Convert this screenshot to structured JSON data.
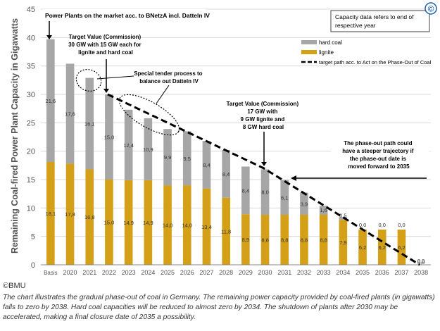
{
  "chart_data": {
    "type": "bar",
    "stacked": true,
    "ylabel": "Remaining Coal-fired Power Plant Capacity in Gigawatts",
    "ylim": [
      0,
      45
    ],
    "yticks": [
      "0",
      "5",
      "10",
      "15",
      "20",
      "25",
      "30",
      "35",
      "40",
      "45"
    ],
    "categories": [
      "Basis",
      "2020",
      "2021",
      "2022",
      "2023",
      "2024",
      "2025",
      "2026",
      "2027",
      "2028",
      "2029",
      "2030",
      "2031",
      "2032",
      "2033",
      "2034",
      "2035",
      "2036",
      "2037",
      "2038"
    ],
    "series": [
      {
        "name": "lignite",
        "color": "#D4A017",
        "values": [
          18.1,
          17.8,
          16.8,
          15.0,
          14.9,
          14.9,
          14.0,
          14.0,
          13.4,
          11.8,
          8.9,
          8.8,
          8.8,
          8.8,
          8.8,
          7.9,
          6.2,
          6.2,
          6.2,
          0
        ],
        "labels": [
          "18,1",
          "17,8",
          "16,8",
          "15,0",
          "14,9",
          "14,9",
          "14,0",
          "14,0",
          "13,4",
          "11,8",
          "8,9",
          "8,8",
          "8,8",
          "8,8",
          "8,8",
          "7,9",
          "6,2",
          "6,2",
          "6,2",
          "0,0"
        ]
      },
      {
        "name": "hard coal",
        "color": "#A6A6A6",
        "values": [
          21.6,
          17.6,
          16.1,
          15.0,
          12.4,
          10.9,
          9.9,
          9.5,
          8.4,
          8.4,
          8.4,
          8.0,
          6.1,
          3.9,
          1.6,
          0.5,
          0,
          0,
          0,
          0
        ],
        "labels": [
          "21,6",
          "17,6",
          "16,1",
          "15,0",
          "12,4",
          "10,9",
          "9,9",
          "9,5",
          "8,4",
          "8,4",
          "8,4",
          "8,0",
          "6,1",
          "3,9",
          "1,6",
          "0,5",
          "0,0",
          "0,0",
          "0,0",
          "0,0"
        ]
      }
    ],
    "target_path": {
      "name": "target path acc. to Act on the Phase-Out of Coal",
      "points": [
        [
          "2022",
          30
        ],
        [
          "2030",
          17
        ],
        [
          "2038",
          0
        ]
      ]
    },
    "legend": {
      "position": "top-right",
      "note": "Capacity data refers to end of respective year",
      "items": [
        {
          "label": "hard coal",
          "color": "#A6A6A6"
        },
        {
          "label": "lignite",
          "color": "#D4A017"
        },
        {
          "label": "target path acc. to Act on the Phase-Out of Coal",
          "color": "#000000"
        }
      ]
    },
    "annotations": {
      "basis": "Power Plants on the market acc. to BNetzA incl. Datteln IV",
      "target1": "Target Value (Commission) 30 GW with 15 GW each for lignite and hard coal",
      "tender": "Special tender process to balance out Datteln IV",
      "target2": "Target Value (Commission) 17 GW with 9 GW lignite and 8 GW hard coal",
      "phaseout": "The phase-out path could have a steeper trajectory if the phase-out date is moved forward to 2035"
    },
    "copyright_mark": "©"
  },
  "credit": "©BMU",
  "caption": "The chart illustrates the gradual phase-out of coal in Germany. The remaining power capacity provided by coal-fired plants (in gigawatts) falls to zero by 2038. Hard coal capacities will be reduced to almost zero by 2034. The shutdown of plants after 2030 may be accelerated, making a final closure date of 2035 a possibility."
}
